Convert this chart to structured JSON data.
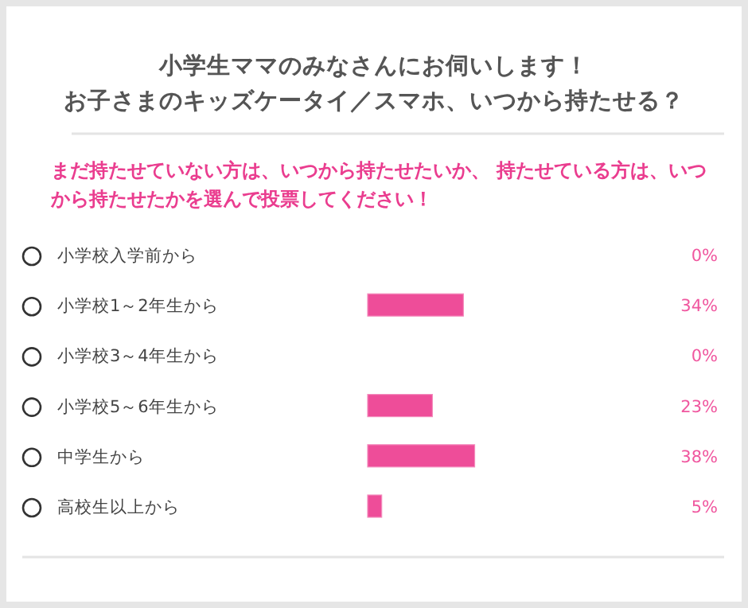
{
  "chart_data": {
    "type": "bar",
    "orientation": "horizontal",
    "title": "小学生ママのみなさんにお伺いします！",
    "subtitle": "お子さまのキッズケータイ／スマホ、いつから持たせる？",
    "annotations": [
      "まだ持たせていない方は、いつから持たせたいか、 持たせている方は、いつから持たせたかを選んで投票してください！"
    ],
    "categories": [
      "小学校入学前から",
      "小学校1～2年生から",
      "小学校3～4年生から",
      "小学校5～6年生から",
      "中学生から",
      "高校生以上から"
    ],
    "values": [
      0,
      34,
      0,
      23,
      38,
      5
    ],
    "value_labels": [
      "0%",
      "34%",
      "0%",
      "23%",
      "38%",
      "5%"
    ],
    "color": "#ee4d99"
  }
}
